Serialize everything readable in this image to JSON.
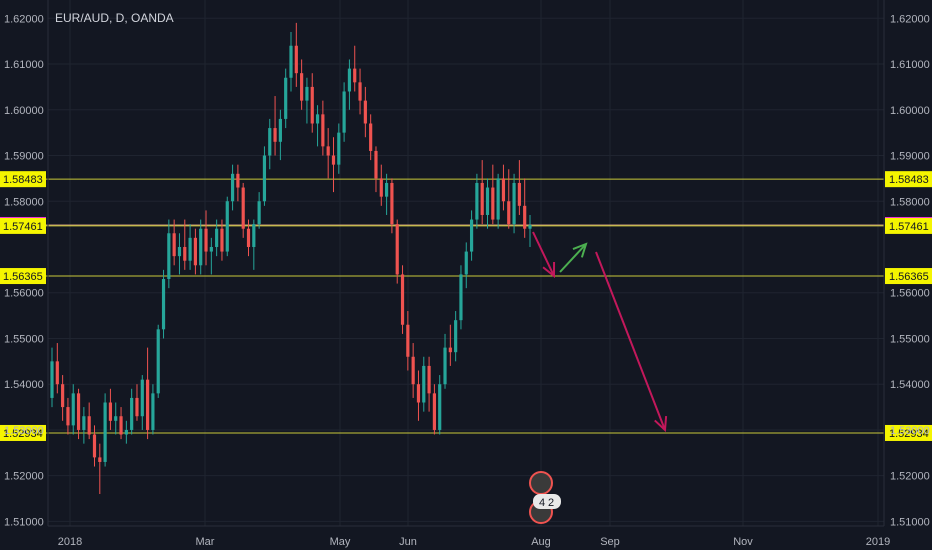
{
  "chart_data": {
    "type": "candlestick",
    "title": "EUR/AUD, D, OANDA",
    "colors": {
      "background": "#131722",
      "grid": "#1f2430",
      "up": "#26a69a",
      "down": "#ef5350",
      "level_line": "#c9c93a",
      "level_label_bg": "#f5f500",
      "current_label_bg": "#e91ee9",
      "current_line": "#c79a7a",
      "arrow_down": "#c2185b",
      "arrow_up": "#4caf50"
    },
    "y_axis": {
      "min": 1.509,
      "max": 1.624,
      "ticks": [
        "1.62000",
        "1.61000",
        "1.60000",
        "1.59000",
        "1.58000",
        "1.56000",
        "1.55000",
        "1.54000",
        "1.53000",
        "1.52000",
        "1.51000"
      ]
    },
    "x_axis": {
      "ticks": [
        "2018",
        "Mar",
        "May",
        "Jun",
        "Aug",
        "Sep",
        "Nov",
        "2019"
      ]
    },
    "levels": [
      {
        "value": "1.58483",
        "kind": "support-resistance"
      },
      {
        "value": "1.57481",
        "kind": "current"
      },
      {
        "value": "1.57461",
        "kind": "support-resistance"
      },
      {
        "value": "1.56365",
        "kind": "support-resistance"
      },
      {
        "value": "1.52934",
        "kind": "support-resistance"
      }
    ],
    "badge_text": "4",
    "badge_text2": "2",
    "candles": [
      [
        1.537,
        1.548,
        1.535,
        1.545
      ],
      [
        1.545,
        1.549,
        1.538,
        1.54
      ],
      [
        1.54,
        1.542,
        1.532,
        1.535
      ],
      [
        1.535,
        1.537,
        1.529,
        1.531
      ],
      [
        1.531,
        1.54,
        1.529,
        1.538
      ],
      [
        1.538,
        1.539,
        1.528,
        1.53
      ],
      [
        1.53,
        1.535,
        1.527,
        1.533
      ],
      [
        1.533,
        1.536,
        1.528,
        1.529
      ],
      [
        1.529,
        1.531,
        1.522,
        1.524
      ],
      [
        1.524,
        1.527,
        1.516,
        1.523
      ],
      [
        1.523,
        1.538,
        1.522,
        1.536
      ],
      [
        1.536,
        1.539,
        1.53,
        1.532
      ],
      [
        1.532,
        1.536,
        1.529,
        1.533
      ],
      [
        1.533,
        1.535,
        1.528,
        1.529
      ],
      [
        1.529,
        1.532,
        1.527,
        1.53
      ],
      [
        1.53,
        1.539,
        1.529,
        1.537
      ],
      [
        1.537,
        1.54,
        1.532,
        1.533
      ],
      [
        1.533,
        1.542,
        1.53,
        1.541
      ],
      [
        1.541,
        1.548,
        1.528,
        1.53
      ],
      [
        1.53,
        1.54,
        1.529,
        1.538
      ],
      [
        1.538,
        1.553,
        1.537,
        1.552
      ],
      [
        1.552,
        1.565,
        1.55,
        1.563
      ],
      [
        1.563,
        1.576,
        1.561,
        1.573
      ],
      [
        1.573,
        1.576,
        1.566,
        1.568
      ],
      [
        1.568,
        1.573,
        1.564,
        1.57
      ],
      [
        1.57,
        1.576,
        1.565,
        1.567
      ],
      [
        1.567,
        1.575,
        1.565,
        1.572
      ],
      [
        1.572,
        1.574,
        1.564,
        1.566
      ],
      [
        1.566,
        1.576,
        1.564,
        1.574
      ],
      [
        1.574,
        1.578,
        1.566,
        1.569
      ],
      [
        1.569,
        1.572,
        1.564,
        1.57
      ],
      [
        1.57,
        1.576,
        1.568,
        1.574
      ],
      [
        1.574,
        1.576,
        1.567,
        1.569
      ],
      [
        1.569,
        1.581,
        1.568,
        1.58
      ],
      [
        1.58,
        1.588,
        1.578,
        1.586
      ],
      [
        1.586,
        1.588,
        1.58,
        1.583
      ],
      [
        1.583,
        1.584,
        1.572,
        1.574
      ],
      [
        1.574,
        1.576,
        1.568,
        1.57
      ],
      [
        1.57,
        1.576,
        1.565,
        1.575
      ],
      [
        1.575,
        1.582,
        1.574,
        1.58
      ],
      [
        1.58,
        1.592,
        1.579,
        1.59
      ],
      [
        1.59,
        1.598,
        1.587,
        1.596
      ],
      [
        1.596,
        1.603,
        1.59,
        1.593
      ],
      [
        1.593,
        1.6,
        1.589,
        1.598
      ],
      [
        1.598,
        1.609,
        1.596,
        1.607
      ],
      [
        1.607,
        1.617,
        1.604,
        1.614
      ],
      [
        1.614,
        1.619,
        1.605,
        1.608
      ],
      [
        1.608,
        1.611,
        1.6,
        1.602
      ],
      [
        1.602,
        1.607,
        1.597,
        1.605
      ],
      [
        1.605,
        1.608,
        1.595,
        1.597
      ],
      [
        1.597,
        1.601,
        1.592,
        1.599
      ],
      [
        1.599,
        1.602,
        1.59,
        1.592
      ],
      [
        1.592,
        1.596,
        1.585,
        1.59
      ],
      [
        1.59,
        1.594,
        1.582,
        1.588
      ],
      [
        1.588,
        1.597,
        1.586,
        1.595
      ],
      [
        1.595,
        1.606,
        1.593,
        1.604
      ],
      [
        1.604,
        1.611,
        1.6,
        1.609
      ],
      [
        1.609,
        1.614,
        1.604,
        1.606
      ],
      [
        1.606,
        1.609,
        1.599,
        1.602
      ],
      [
        1.602,
        1.605,
        1.594,
        1.597
      ],
      [
        1.597,
        1.599,
        1.589,
        1.591
      ],
      [
        1.591,
        1.592,
        1.582,
        1.585
      ],
      [
        1.585,
        1.588,
        1.579,
        1.581
      ],
      [
        1.581,
        1.586,
        1.577,
        1.584
      ],
      [
        1.584,
        1.585,
        1.573,
        1.575
      ],
      [
        1.575,
        1.576,
        1.562,
        1.564
      ],
      [
        1.564,
        1.566,
        1.551,
        1.553
      ],
      [
        1.553,
        1.556,
        1.543,
        1.546
      ],
      [
        1.546,
        1.549,
        1.537,
        1.54
      ],
      [
        1.54,
        1.543,
        1.532,
        1.536
      ],
      [
        1.536,
        1.546,
        1.534,
        1.544
      ],
      [
        1.544,
        1.546,
        1.534,
        1.538
      ],
      [
        1.538,
        1.54,
        1.529,
        1.53
      ],
      [
        1.53,
        1.542,
        1.529,
        1.54
      ],
      [
        1.54,
        1.551,
        1.539,
        1.548
      ],
      [
        1.548,
        1.553,
        1.544,
        1.547
      ],
      [
        1.547,
        1.556,
        1.545,
        1.554
      ],
      [
        1.554,
        1.566,
        1.552,
        1.564
      ],
      [
        1.564,
        1.571,
        1.561,
        1.569
      ],
      [
        1.569,
        1.578,
        1.567,
        1.576
      ],
      [
        1.576,
        1.586,
        1.574,
        1.584
      ],
      [
        1.584,
        1.589,
        1.575,
        1.577
      ],
      [
        1.577,
        1.585,
        1.574,
        1.583
      ],
      [
        1.583,
        1.588,
        1.575,
        1.576
      ],
      [
        1.576,
        1.586,
        1.574,
        1.585
      ],
      [
        1.585,
        1.588,
        1.578,
        1.58
      ],
      [
        1.58,
        1.587,
        1.574,
        1.575
      ],
      [
        1.575,
        1.586,
        1.573,
        1.584
      ],
      [
        1.584,
        1.589,
        1.577,
        1.579
      ],
      [
        1.579,
        1.585,
        1.572,
        1.574
      ],
      [
        1.574,
        1.577,
        1.57,
        1.5748
      ]
    ]
  }
}
